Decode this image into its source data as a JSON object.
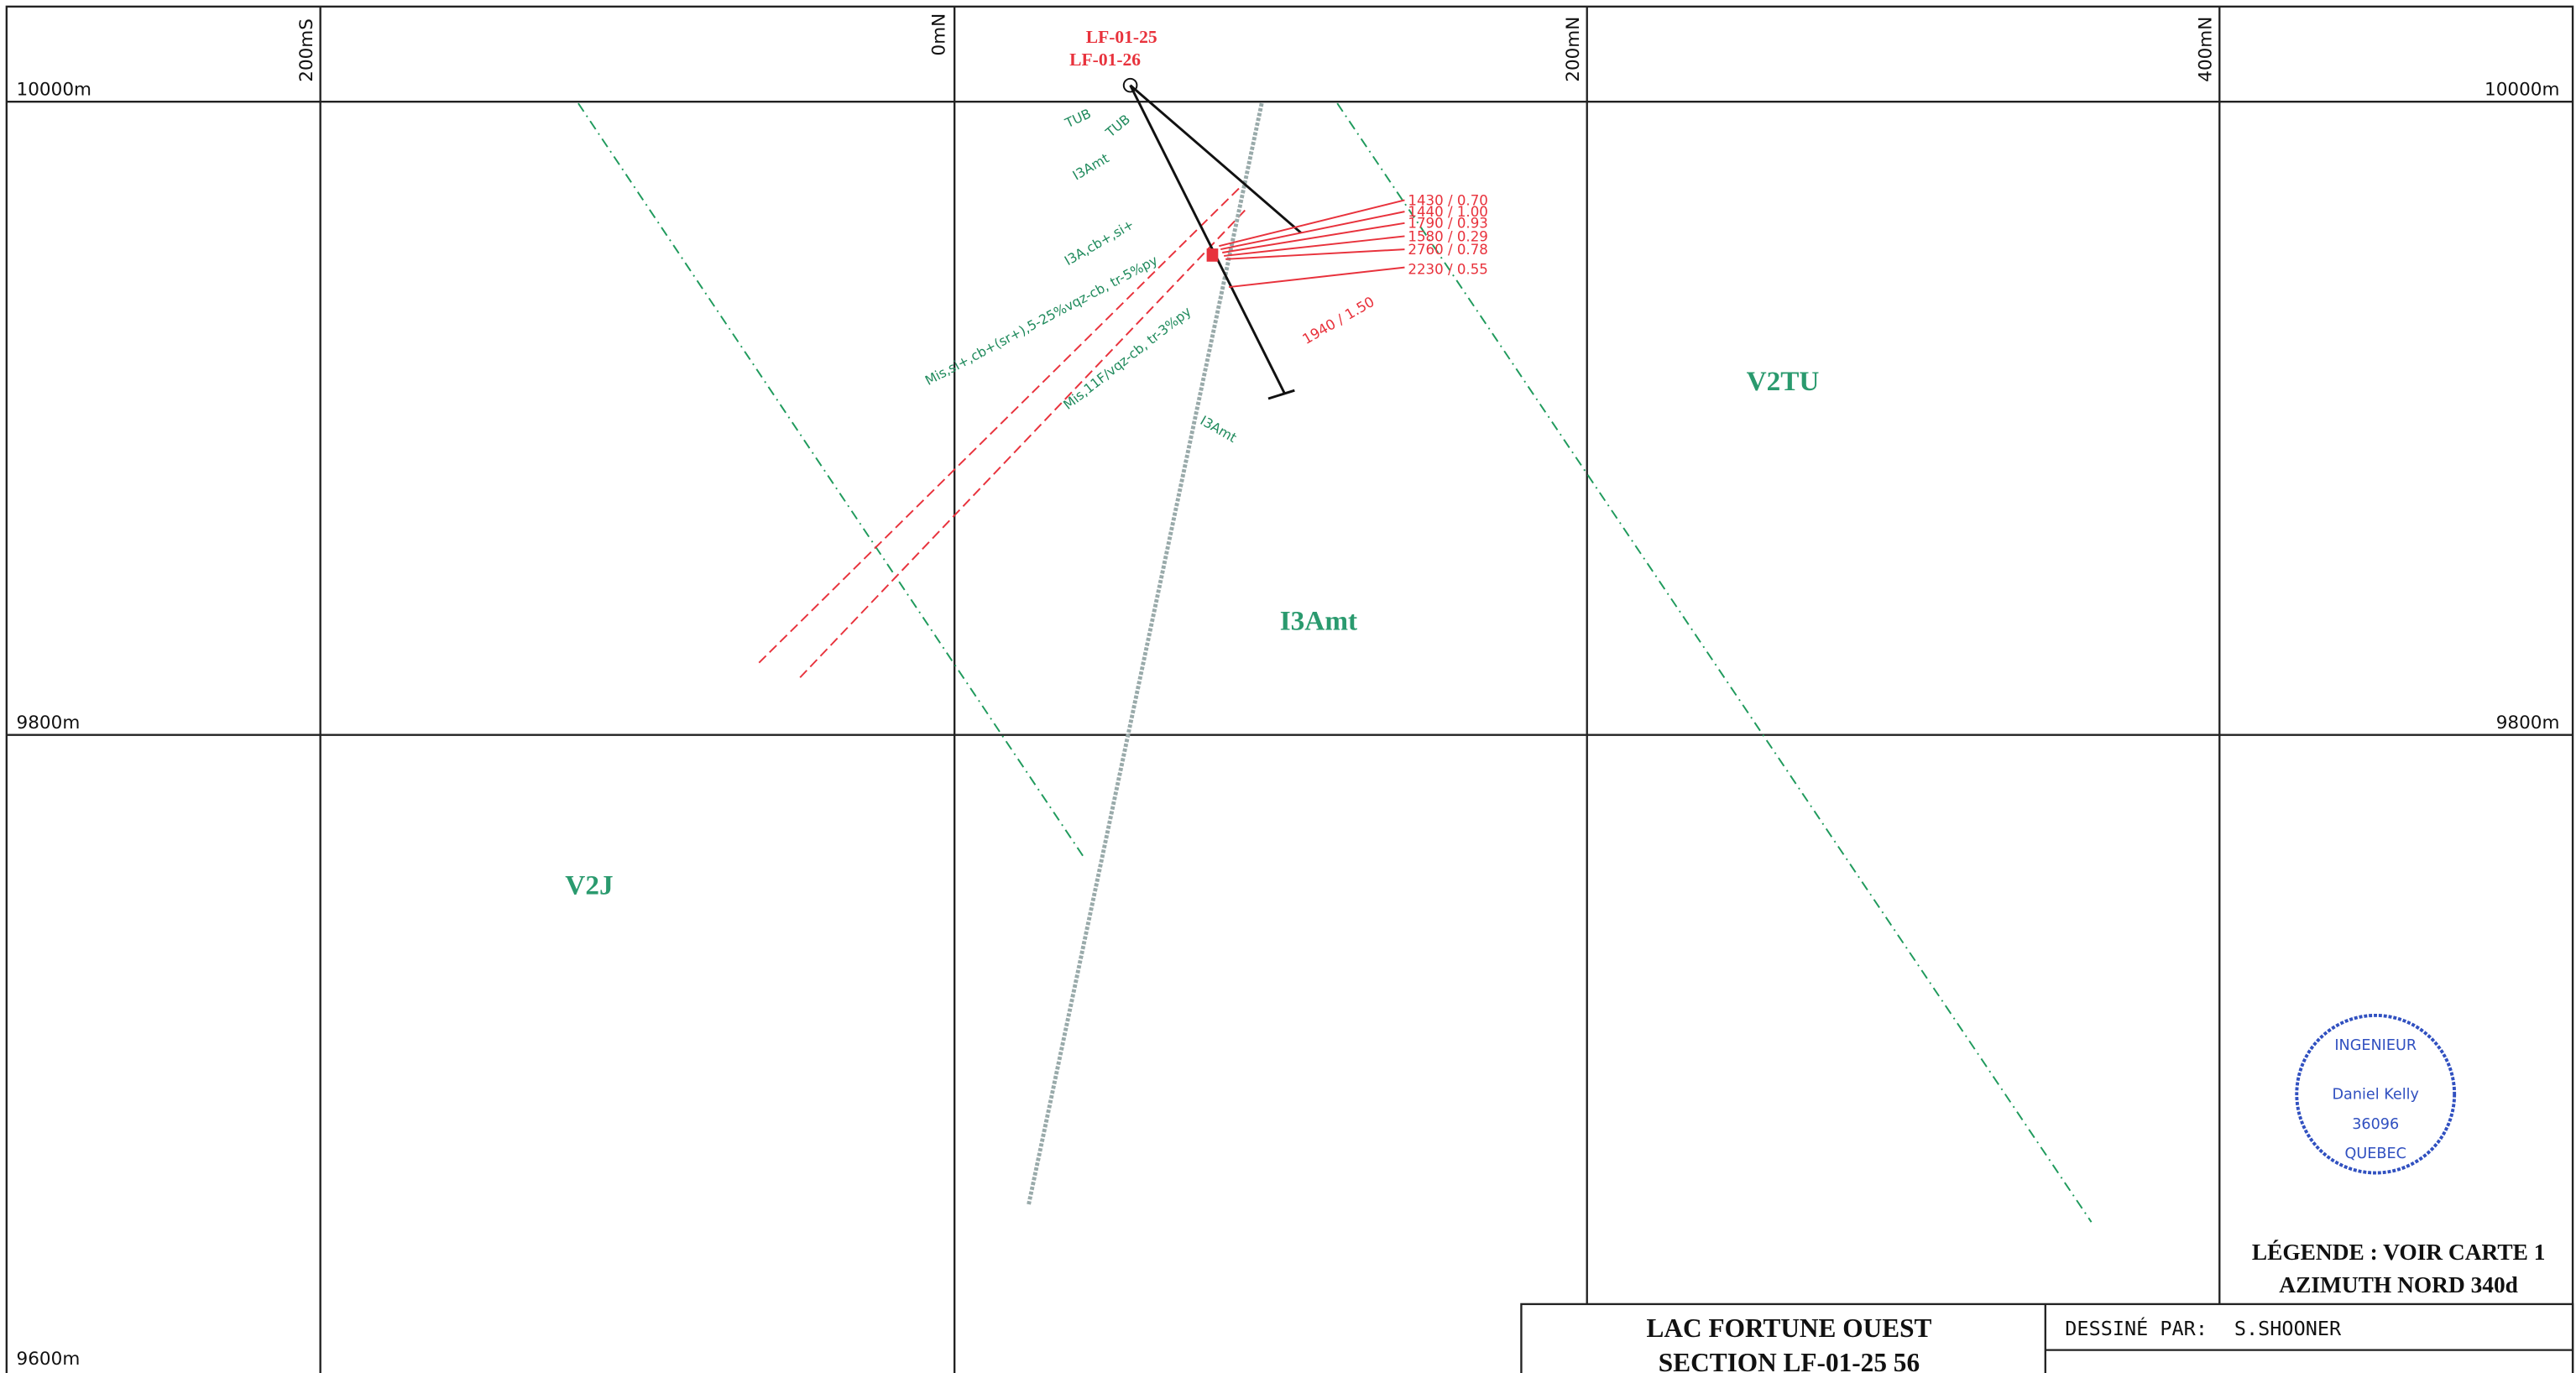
{
  "grid": {
    "northings": [
      "200mS",
      "0mN",
      "200mN",
      "400mN"
    ],
    "elevations_left": [
      "10000m",
      "9800m",
      "9600m"
    ],
    "elevations_right": [
      "10000m",
      "9800m"
    ]
  },
  "holes": [
    "LF-01-25",
    "LF-01-26"
  ],
  "lithology": [
    "TUB",
    "TUB",
    "I3Amt",
    "I3A,cb+,si+",
    "Mis,si+,cb+(sr+),5-25%vqz-cb, tr-5%py",
    "Mis,11F/vqz-cb, tr-3%py",
    "I3Amt"
  ],
  "assays": [
    "1430 / 0.70",
    "1440 / 1.00",
    "1790 / 0.93",
    "1580 / 0.29",
    "2760 / 0.78",
    "2230 / 0.55",
    "1940 / 1.50"
  ],
  "units": [
    "V2TU",
    "I3Amt",
    "V2J"
  ],
  "legend": [
    "LÉGENDE : VOIR CARTE 1",
    "AZIMUTH NORD 340d"
  ],
  "stamp": [
    "INGENIEUR",
    "Daniel Kelly",
    "36096",
    "QUEBEC"
  ],
  "title_block": {
    "title": "LAC FORTUNE OUEST",
    "subtitle": "SECTION LF-01-25 56",
    "drawn_by_label": "DESSINÉ PAR:",
    "drawn_by": "S.SHOONER"
  }
}
